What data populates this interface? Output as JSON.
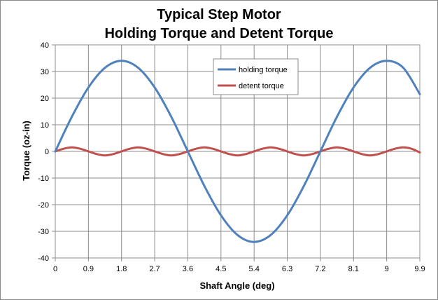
{
  "chart_data": {
    "type": "line",
    "title": [
      "Typical Step Motor",
      "Holding Torque and Detent Torque"
    ],
    "xlabel": "Shaft Angle (deg)",
    "ylabel": "Torque (oz-in)",
    "xlim": [
      0,
      9.9
    ],
    "ylim": [
      -40,
      40
    ],
    "x_ticks": [
      "0",
      "0.9",
      "1.8",
      "2.7",
      "3.6",
      "4.5",
      "5.4",
      "6.3",
      "7.2",
      "8.1",
      "9",
      "9.9"
    ],
    "y_ticks": [
      "40",
      "30",
      "20",
      "10",
      "0",
      "-10",
      "-20",
      "-30",
      "-40"
    ],
    "grid": true,
    "legend_position": "top-center",
    "series": [
      {
        "name": "holding torque",
        "color": "#4F81BD",
        "x": [
          0,
          0.45,
          0.9,
          1.35,
          1.8,
          2.25,
          2.7,
          3.15,
          3.6,
          4.05,
          4.5,
          4.95,
          5.4,
          5.85,
          6.3,
          6.75,
          7.2,
          7.65,
          8.1,
          8.55,
          9.0,
          9.45,
          9.9
        ],
        "y": [
          0,
          13,
          24,
          31.4,
          34,
          31.4,
          24,
          13,
          0,
          -13,
          -24,
          -31.4,
          -34,
          -31.4,
          -24,
          -13,
          0,
          13,
          24,
          31.4,
          34,
          31.4,
          21.5
        ]
      },
      {
        "name": "detent torque",
        "color": "#C0504D",
        "x": [
          0,
          0.225,
          0.45,
          0.675,
          0.9,
          1.125,
          1.35,
          1.575,
          1.8,
          2.025,
          2.25,
          2.475,
          2.7,
          2.925,
          3.15,
          3.375,
          3.6,
          3.825,
          4.05,
          4.275,
          4.5,
          4.725,
          4.95,
          5.175,
          5.4,
          5.625,
          5.85,
          6.075,
          6.3,
          6.525,
          6.75,
          6.975,
          7.2,
          7.425,
          7.65,
          7.875,
          8.1,
          8.325,
          8.55,
          8.775,
          9.0,
          9.225,
          9.45,
          9.675,
          9.9
        ],
        "y": [
          0,
          1,
          1.5,
          1,
          0,
          -1,
          -1.5,
          -1,
          0,
          1,
          1.5,
          1,
          0,
          -1,
          -1.5,
          -1,
          0,
          1,
          1.5,
          1,
          0,
          -1,
          -1.5,
          -1,
          0,
          1,
          1.5,
          1,
          0,
          -1,
          -1.5,
          -1,
          0,
          1,
          1.5,
          1,
          0,
          -1,
          -1.5,
          -1,
          0,
          1,
          1.5,
          1,
          -0.4
        ]
      }
    ]
  }
}
